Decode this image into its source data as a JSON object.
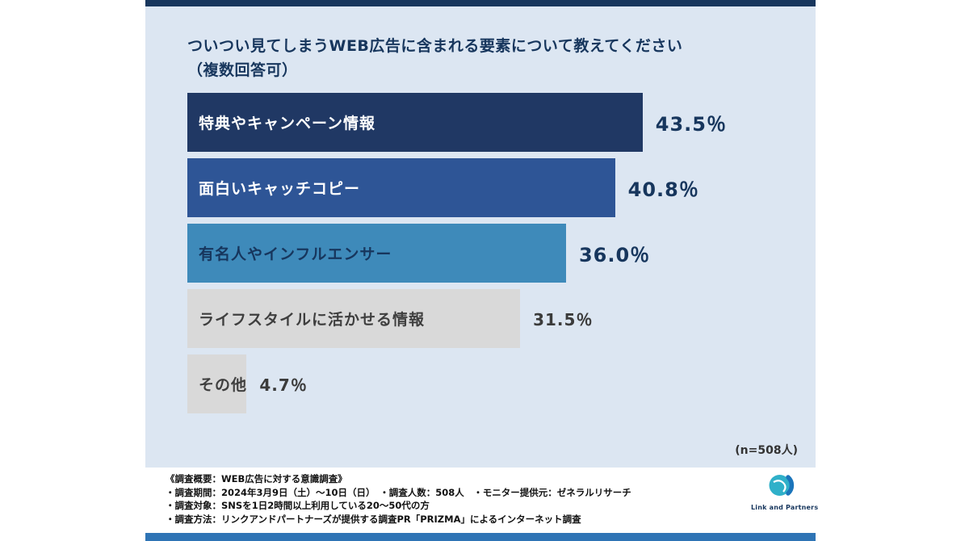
{
  "colors": {
    "top_strip": "#17365d",
    "panel_background": "#dce6f2",
    "bottom_strip": "#2e74b5",
    "title_text": "#17365d",
    "gray_bar": "#d9d9d9"
  },
  "chart_data": {
    "type": "bar",
    "orientation": "horizontal",
    "title": "ついつい見てしまうWEB広告に含まれる要素について教えてください",
    "subtitle": "（複数回答可）",
    "categories": [
      "特典やキャンペーン情報",
      "面白いキャッチコピー",
      "有名人やインフルエンサー",
      "ライフスタイルに活かせる情報",
      "その他"
    ],
    "values": [
      43.5,
      40.8,
      36.0,
      31.5,
      4.7
    ],
    "value_labels": [
      "43.5％",
      "40.8％",
      "36.0％",
      "31.5％",
      "4.7％"
    ],
    "bar_colors": [
      "#203864",
      "#2e5596",
      "#3e8aba",
      "#d9d9d9",
      "#d9d9d9"
    ],
    "category_label_colors": [
      "#ffffff",
      "#ffffff",
      "#17365d",
      "#3f3f3f",
      "#3f3f3f"
    ],
    "muted": [
      false,
      false,
      false,
      true,
      true
    ],
    "xlim": [
      0,
      58
    ],
    "grid": false,
    "legend": "none",
    "sample_note": "(n=508人)"
  },
  "footer": {
    "lines": [
      "《調査概要：WEB広告に対する意識調査》",
      "・調査期間：2024年3月9日（土）～10日（日）　・調査人数：508人　・モニター提供元：ゼネラルリサーチ",
      "・調査対象：SNSを1日2時間以上利用している20～50代の方",
      "・調査方法：リンクアンドパートナーズが提供する調査PR「PRIZMA」によるインターネット調査"
    ]
  },
  "logo": {
    "text": "Link and Partners"
  }
}
